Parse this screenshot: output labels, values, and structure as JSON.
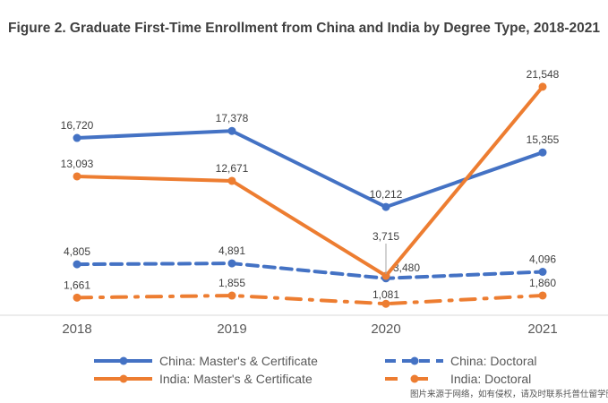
{
  "chart_data": {
    "type": "line",
    "title": "Figure 2. Graduate First-Time Enrollment from China and India by Degree Type, 2018-2021",
    "categories": [
      "2018",
      "2019",
      "2020",
      "2021"
    ],
    "ylim": [
      0,
      25000
    ],
    "grid": false,
    "legend_position": "bottom",
    "series": [
      {
        "name": "China: Master's & Certificate",
        "values": [
          16720,
          17378,
          10212,
          15355
        ],
        "labels": [
          "16,720",
          "17,378",
          "10,212",
          "15,355"
        ],
        "color": "#4472C4",
        "style": "solid"
      },
      {
        "name": "China: Doctoral",
        "values": [
          4805,
          4891,
          3480,
          4096
        ],
        "labels": [
          "4,805",
          "4,891",
          "3,480",
          "4,096"
        ],
        "color": "#4472C4",
        "style": "dash"
      },
      {
        "name": "India: Master's & Certificate",
        "values": [
          13093,
          12671,
          3715,
          21548
        ],
        "labels": [
          "13,093",
          "12,671",
          "3,715",
          "21,548"
        ],
        "color": "#ED7D31",
        "style": "solid"
      },
      {
        "name": "India: Doctoral",
        "values": [
          1661,
          1855,
          1081,
          1860
        ],
        "labels": [
          "1,661",
          "1,855",
          "1,081",
          "1,860"
        ],
        "color": "#ED7D31",
        "style": "dashdot"
      }
    ]
  },
  "watermark": "图片来源于网络，如有侵权，请及时联系托普仕留学删除"
}
